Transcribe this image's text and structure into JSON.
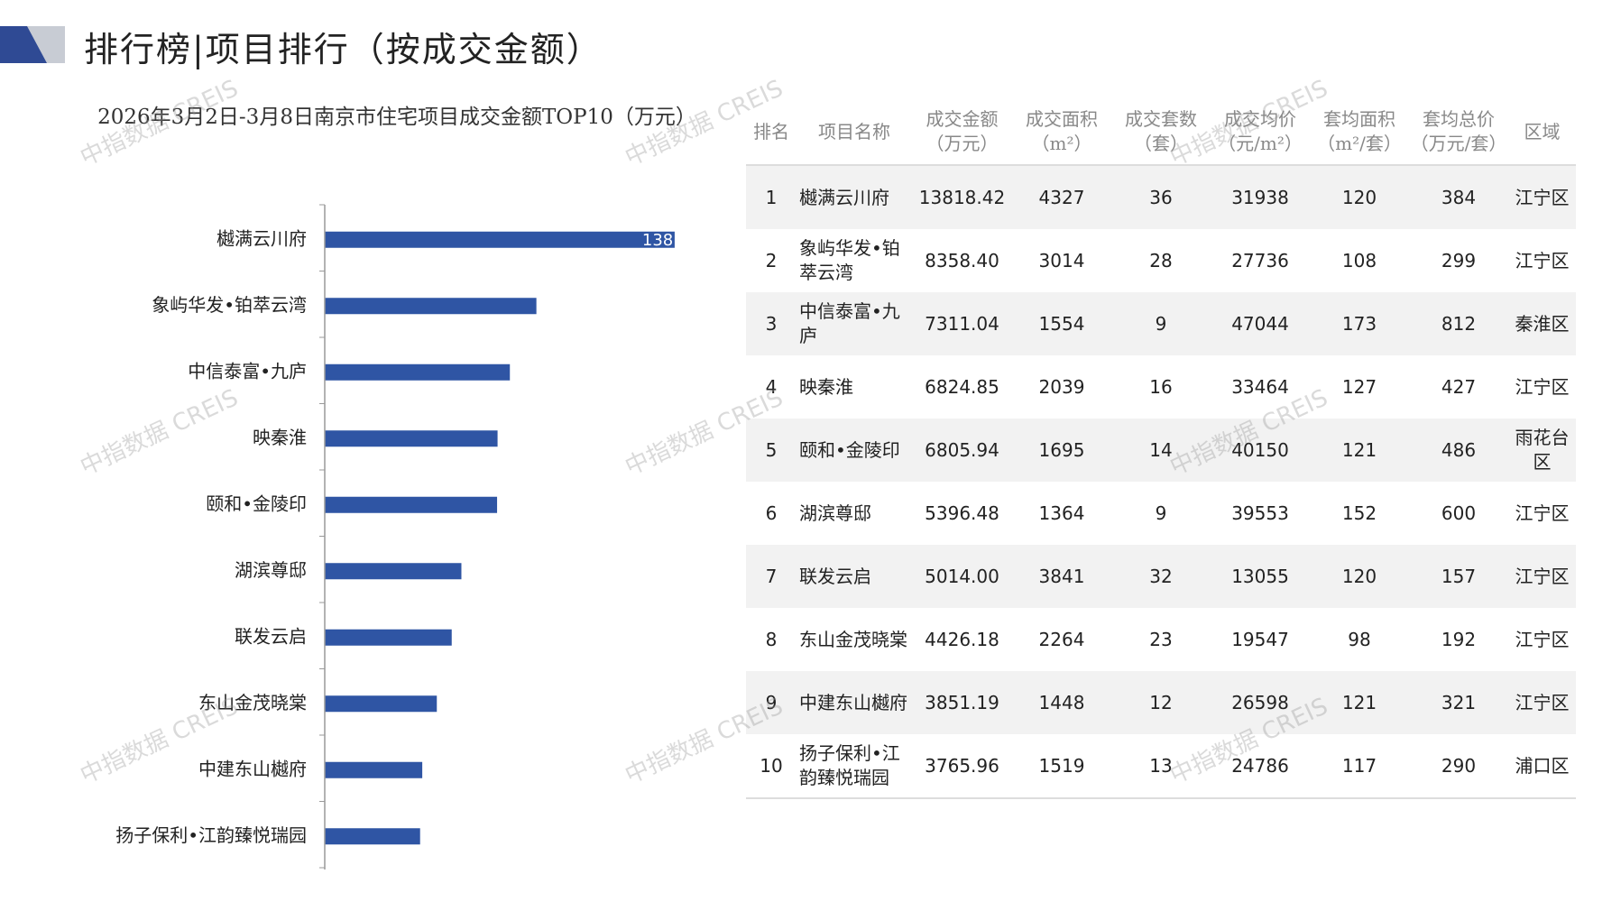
{
  "header": {
    "title": "排行榜|项目排行（按成交金额）"
  },
  "watermark": "中指数据 CREIS",
  "chart_data": {
    "type": "hbar",
    "title": "2026年3月2日-3月8日南京市住宅项目成交金额TOP10（万元）",
    "categories": [
      "樾满云川府",
      "象屿华发•铂萃云湾",
      "中信泰富•九庐",
      "映秦淮",
      "颐和•金陵印",
      "湖滨尊邸",
      "联发云启",
      "东山金茂晓棠",
      "中建东山樾府",
      "扬子保利•江韵臻悦瑞园"
    ],
    "values": [
      13818.42,
      8358.4,
      7311.04,
      6824.85,
      6805.94,
      5396.48,
      5014.0,
      4426.18,
      3851.19,
      3765.96
    ],
    "color": "#2f55a4",
    "xlim": [
      0,
      14000
    ]
  },
  "table": {
    "header": [
      "排名",
      "项目名称",
      "成交金额\n（万元）",
      "成交面积\n（m²）",
      "成交套数\n（套）",
      "成交均价\n（元/m²）",
      "套均面积\n（m²/套）",
      "套均总价\n（万元/套）",
      "区域"
    ],
    "rows": [
      [
        "1",
        "樾满云川府",
        "13818.42",
        "4327",
        "36",
        "31938",
        "120",
        "384",
        "江宁区"
      ],
      [
        "2",
        "象屿华发•铂萃云湾",
        "8358.40",
        "3014",
        "28",
        "27736",
        "108",
        "299",
        "江宁区"
      ],
      [
        "3",
        "中信泰富•九庐",
        "7311.04",
        "1554",
        "9",
        "47044",
        "173",
        "812",
        "秦淮区"
      ],
      [
        "4",
        "映秦淮",
        "6824.85",
        "2039",
        "16",
        "33464",
        "127",
        "427",
        "江宁区"
      ],
      [
        "5",
        "颐和•金陵印",
        "6805.94",
        "1695",
        "14",
        "40150",
        "121",
        "486",
        "雨花台区"
      ],
      [
        "6",
        "湖滨尊邸",
        "5396.48",
        "1364",
        "9",
        "39553",
        "152",
        "600",
        "江宁区"
      ],
      [
        "7",
        "联发云启",
        "5014.00",
        "3841",
        "32",
        "13055",
        "120",
        "157",
        "江宁区"
      ],
      [
        "8",
        "东山金茂晓棠",
        "4426.18",
        "2264",
        "23",
        "19547",
        "98",
        "192",
        "江宁区"
      ],
      [
        "9",
        "中建东山樾府",
        "3851.19",
        "1448",
        "12",
        "26598",
        "121",
        "321",
        "江宁区"
      ],
      [
        "10",
        "扬子保利•江韵臻悦瑞园",
        "3765.96",
        "1519",
        "13",
        "24786",
        "117",
        "290",
        "浦口区"
      ]
    ]
  }
}
